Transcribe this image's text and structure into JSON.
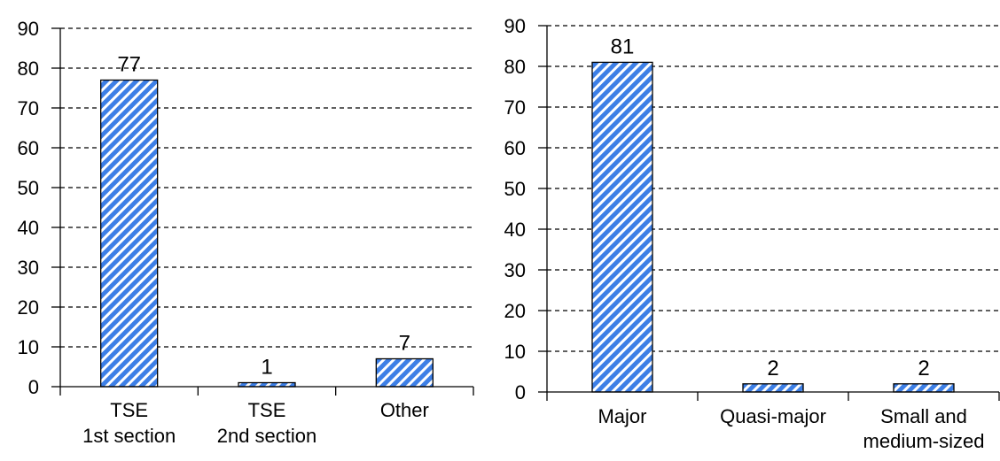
{
  "colors": {
    "bar_fill": "#3d7fe6",
    "bar_stripe": "#ffffff",
    "bar_edge": "#000000",
    "axis": "#000000",
    "grid": "#000000"
  },
  "chart_data": [
    {
      "type": "bar",
      "title": "",
      "xlabel": "",
      "ylabel": "",
      "ylim": [
        0,
        90
      ],
      "yticks": [
        "0",
        "10",
        "20",
        "30",
        "40",
        "50",
        "60",
        "70",
        "80",
        "90"
      ],
      "grid": "horizontal dashed",
      "legend": "none",
      "categories": [
        [
          "TSE",
          "1st section"
        ],
        [
          "TSE",
          "2nd section"
        ],
        [
          "Other"
        ]
      ],
      "values": [
        77,
        1,
        7
      ],
      "data_labels": [
        "77",
        "1",
        "7"
      ]
    },
    {
      "type": "bar",
      "title": "",
      "xlabel": "",
      "ylabel": "",
      "ylim": [
        0,
        90
      ],
      "yticks": [
        "0",
        "10",
        "20",
        "30",
        "40",
        "50",
        "60",
        "70",
        "80",
        "90"
      ],
      "grid": "horizontal dashed",
      "legend": "none",
      "categories": [
        [
          "Major"
        ],
        [
          "Quasi-major"
        ],
        [
          "Small and",
          "medium-sized"
        ]
      ],
      "values": [
        81,
        2,
        2
      ],
      "data_labels": [
        "81",
        "2",
        "2"
      ]
    }
  ]
}
